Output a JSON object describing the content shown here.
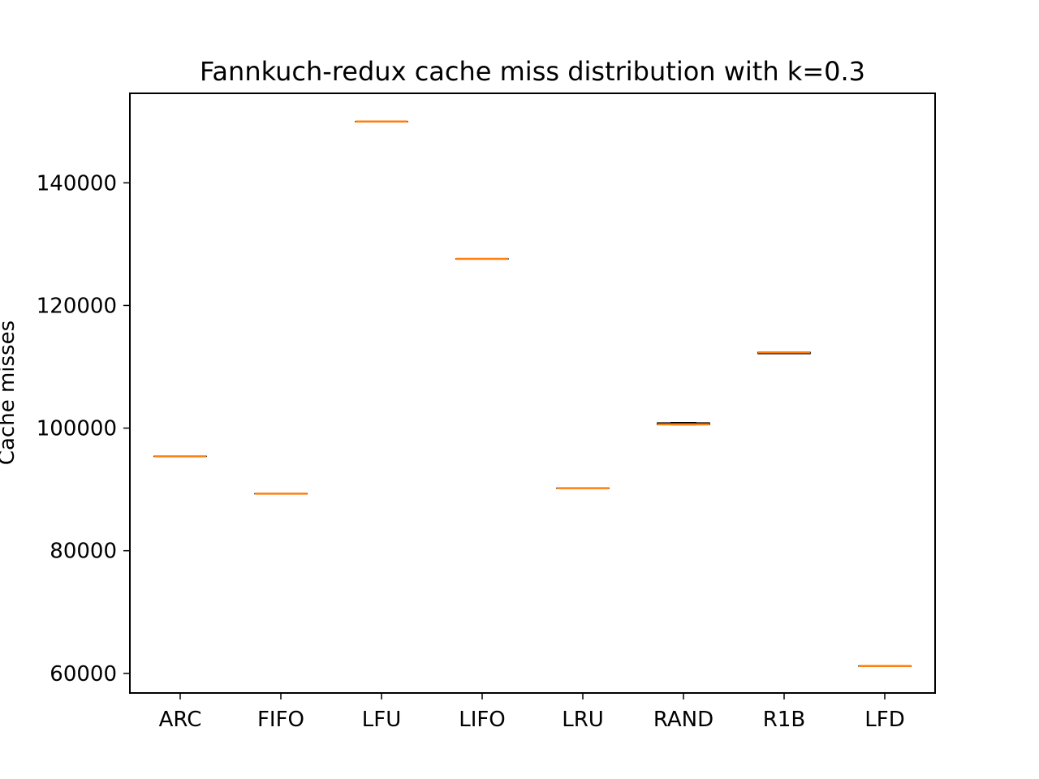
{
  "chart_data": {
    "type": "box",
    "title": "Fannkuch-redux cache miss distribution with k=0.3",
    "xlabel": "",
    "ylabel": "Cache misses",
    "categories": [
      "ARC",
      "FIFO",
      "LFU",
      "LIFO",
      "LRU",
      "RAND",
      "R1B",
      "LFD"
    ],
    "series": [
      {
        "values": [
          {
            "min": 95400,
            "q1": 95400,
            "median": 95400,
            "q3": 95400,
            "max": 95400
          },
          {
            "min": 89300,
            "q1": 89300,
            "median": 89300,
            "q3": 89300,
            "max": 89300
          },
          {
            "min": 150000,
            "q1": 150000,
            "median": 150000,
            "q3": 150000,
            "max": 150000
          },
          {
            "min": 127600,
            "q1": 127600,
            "median": 127600,
            "q3": 127600,
            "max": 127600
          },
          {
            "min": 90200,
            "q1": 90200,
            "median": 90200,
            "q3": 90200,
            "max": 90200
          },
          {
            "min": 100550,
            "q1": 100600,
            "median": 100600,
            "q3": 100850,
            "max": 100900
          },
          {
            "min": 112150,
            "q1": 112150,
            "median": 112350,
            "q3": 112350,
            "max": 112350
          },
          {
            "min": 61200,
            "q1": 61200,
            "median": 61200,
            "q3": 61200,
            "max": 61200
          }
        ]
      }
    ],
    "yticks": [
      60000,
      80000,
      100000,
      120000,
      140000
    ],
    "ylim": [
      56800,
      154600
    ],
    "grid": false,
    "colors": {
      "median": "#ff7f0e",
      "box": "#000000",
      "axes": "#000000"
    }
  }
}
